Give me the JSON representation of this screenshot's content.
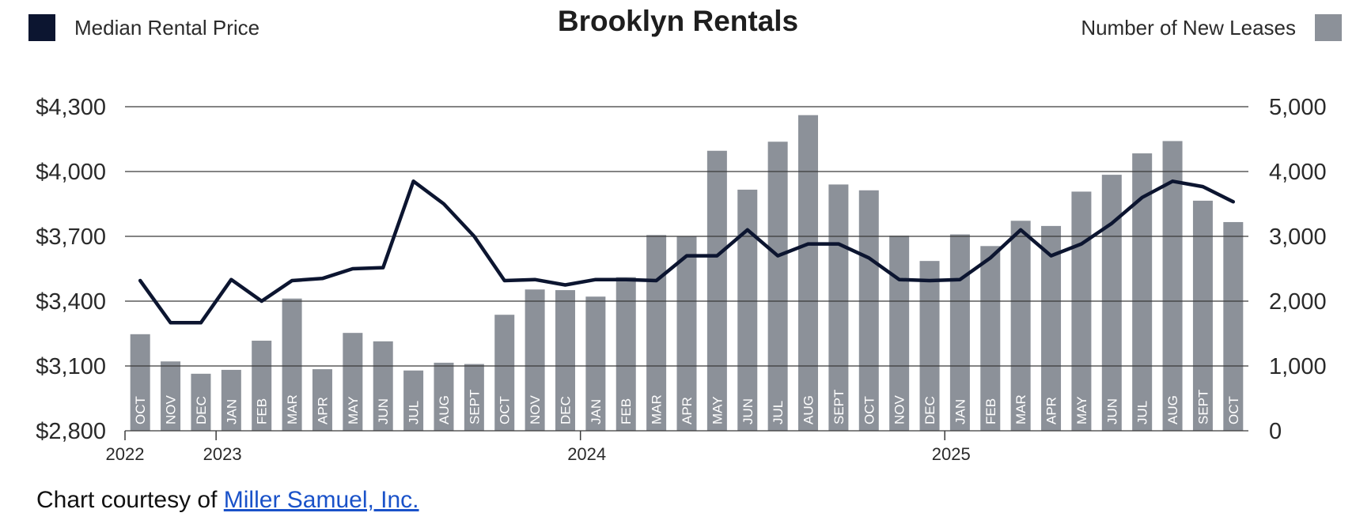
{
  "legend": {
    "line_label": "Median Rental Price",
    "bar_label": "Number of New Leases",
    "line_color": "#0c1530",
    "bar_color": "#8c9199"
  },
  "title": "Brooklyn Rentals",
  "credit": {
    "prefix": "Chart courtesy of",
    "link_text": "Miller Samuel, Inc."
  },
  "chart_data": {
    "type": "bar",
    "title": "Brooklyn Rentals",
    "categories": [
      "OCT",
      "NOV",
      "DEC",
      "JAN",
      "FEB",
      "MAR",
      "APR",
      "MAY",
      "JUN",
      "JUL",
      "AUG",
      "SEPT",
      "OCT",
      "NOV",
      "DEC",
      "JAN",
      "FEB",
      "MAR",
      "APR",
      "MAY",
      "JUN",
      "JUL",
      "AUG",
      "SEPT",
      "OCT",
      "NOV",
      "DEC",
      "JAN",
      "FEB",
      "MAR",
      "APR",
      "MAY",
      "JUN",
      "JUL",
      "AUG",
      "SEPT",
      "OCT"
    ],
    "year_labels": [
      {
        "label": "2022",
        "index": 0
      },
      {
        "label": "2023",
        "index": 3
      },
      {
        "label": "2024",
        "index": 15
      },
      {
        "label": "2025",
        "index": 27
      }
    ],
    "series": [
      {
        "name": "Number of New Leases",
        "kind": "bar",
        "axis": "right",
        "values": [
          1490,
          1070,
          880,
          940,
          1390,
          2040,
          950,
          1510,
          1380,
          930,
          1050,
          1030,
          1790,
          2180,
          2170,
          2070,
          2370,
          3020,
          3000,
          4320,
          3720,
          4460,
          4870,
          3800,
          3710,
          3010,
          2620,
          3030,
          2850,
          3240,
          3160,
          3690,
          3950,
          4280,
          4470,
          3550,
          3220
        ]
      },
      {
        "name": "Median Rental Price",
        "kind": "line",
        "axis": "left",
        "values": [
          3495,
          3300,
          3300,
          3500,
          3400,
          3495,
          3505,
          3550,
          3555,
          3955,
          3850,
          3700,
          3495,
          3500,
          3475,
          3500,
          3500,
          3495,
          3610,
          3610,
          3730,
          3610,
          3665,
          3665,
          3600,
          3500,
          3495,
          3500,
          3600,
          3730,
          3610,
          3665,
          3760,
          3880,
          3955,
          3930,
          3860
        ]
      }
    ],
    "y_left": {
      "range": [
        2800,
        4300
      ],
      "ticks": [
        2800,
        3100,
        3400,
        3700,
        4000,
        4300
      ],
      "tick_labels": [
        "$2,800",
        "$3,100",
        "$3,400",
        "$3,700",
        "$4,000",
        "$4,300"
      ]
    },
    "y_right": {
      "range": [
        0,
        5000
      ],
      "ticks": [
        0,
        1000,
        2000,
        3000,
        4000,
        5000
      ],
      "tick_labels": [
        "0",
        "1,000",
        "2,000",
        "3,000",
        "4,000",
        "5,000"
      ]
    },
    "grid": true
  }
}
